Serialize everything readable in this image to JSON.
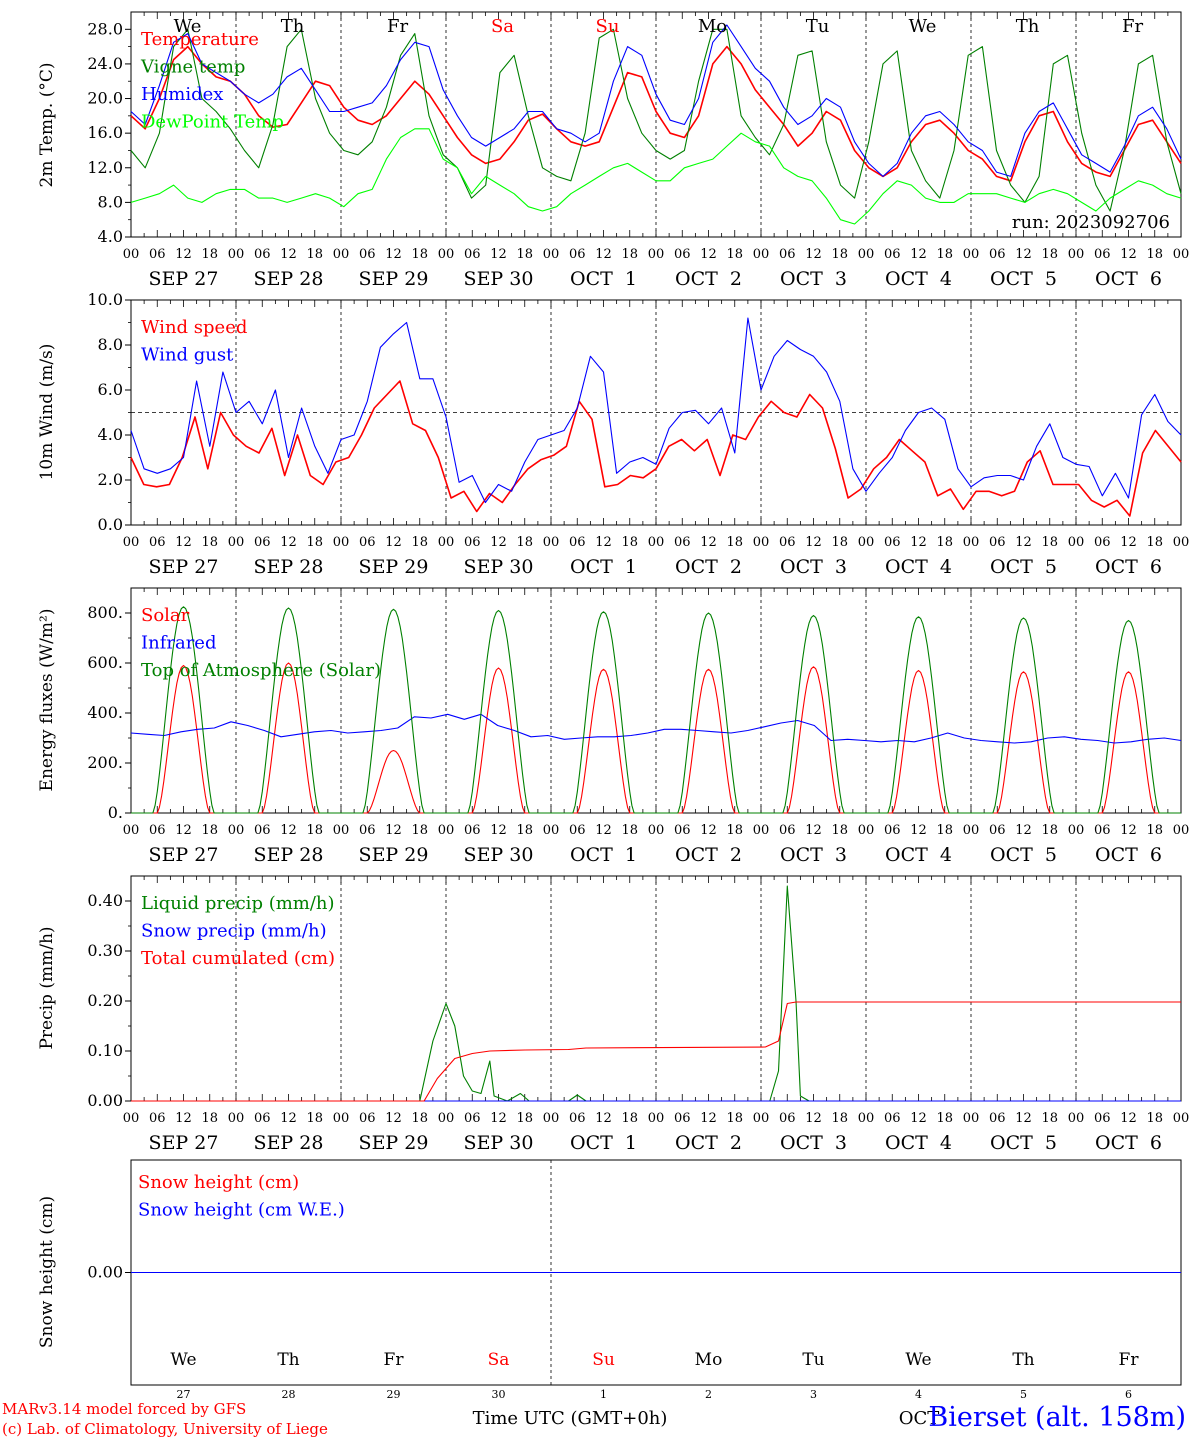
{
  "chart_data": [
    {
      "type": "line",
      "ylabel": "2m Temp. (°C)",
      "ylim": [
        4,
        30
      ],
      "yticks": [
        "4.0",
        "8.0",
        "12.0",
        "16.0",
        "20.0",
        "24.0",
        "28.0"
      ],
      "ytick_values": [
        4,
        8,
        12,
        16,
        20,
        24,
        28
      ],
      "run_label": "run: 2023092706",
      "date_labels": [
        "SEP 27",
        "SEP 28",
        "SEP 29",
        "SEP 30",
        "OCT  1",
        "OCT  2",
        "OCT  3",
        "OCT  4",
        "OCT  5",
        "OCT  6"
      ],
      "day_labels": [
        "We",
        "Th",
        "Fr",
        "Sa",
        "Su",
        "Mo",
        "Tu",
        "We",
        "Th",
        "Fr"
      ],
      "series": [
        {
          "name": "Temperature",
          "color": "#ff0000",
          "values": [
            18,
            16.5,
            20,
            24.5,
            26,
            24,
            22.5,
            22,
            20.5,
            18,
            16.7,
            17,
            19.5,
            22,
            21.5,
            19,
            17.5,
            17,
            18,
            20,
            22,
            20.5,
            18,
            15.5,
            13.5,
            12.5,
            13,
            15,
            17.5,
            18.2,
            16.5,
            15,
            14.5,
            15,
            19,
            23,
            22.5,
            18.5,
            16,
            15.5,
            18,
            24,
            26,
            24,
            21,
            19,
            17,
            14.5,
            16,
            18.5,
            17.5,
            14,
            12,
            11,
            12,
            15,
            17,
            17.5,
            16,
            14,
            13,
            11,
            10.5,
            15,
            18,
            18.5,
            15,
            12.5,
            11.5,
            11,
            14,
            17,
            17.5,
            15,
            12.5
          ]
        },
        {
          "name": "Vigne temp",
          "color": "#008000",
          "values": [
            14,
            12,
            16,
            26,
            28,
            20,
            18.5,
            16.5,
            14,
            12,
            17,
            26,
            28,
            20,
            16,
            14,
            13.5,
            15,
            19,
            25,
            27.5,
            18,
            13.5,
            12,
            8.5,
            10,
            23,
            25,
            18,
            12,
            11,
            10.5,
            16,
            27,
            28,
            20,
            16,
            14,
            13,
            14,
            22,
            28,
            28,
            18,
            15.5,
            13.5,
            17,
            25,
            25.5,
            15,
            10,
            8.5,
            15,
            24,
            25.5,
            14,
            10.5,
            8.5,
            14,
            25,
            26,
            14,
            10,
            8,
            11,
            24,
            25,
            16,
            10,
            7,
            14,
            24,
            25,
            15,
            9
          ]
        },
        {
          "name": "Humidex",
          "color": "#0000ff",
          "values": [
            18.5,
            17,
            21.5,
            26.5,
            27.5,
            24,
            23,
            22,
            20.5,
            19.5,
            20.5,
            22.5,
            23.5,
            21,
            18.5,
            18.5,
            19,
            19.5,
            21.5,
            24.5,
            26.5,
            26,
            21,
            18,
            15.5,
            14.5,
            15.5,
            16.5,
            18.5,
            18.5,
            16.5,
            16,
            15,
            16,
            22,
            26,
            25,
            20.5,
            17.5,
            17,
            20,
            26.5,
            28.5,
            26,
            23.5,
            22,
            19,
            17,
            18,
            20,
            19,
            15,
            12.5,
            11,
            12.5,
            16,
            18,
            18.5,
            17,
            15,
            14,
            11.5,
            11,
            16,
            18.5,
            19.5,
            16.5,
            13.5,
            12.5,
            11.5,
            14.5,
            18,
            19,
            16.5,
            13
          ]
        },
        {
          "name": "DewPoint Temp",
          "color": "#00ff00",
          "values": [
            8,
            8.5,
            9,
            10,
            8.5,
            8,
            9,
            9.5,
            9.5,
            8.5,
            8.5,
            8,
            8.5,
            9,
            8.5,
            7.5,
            9,
            9.5,
            13,
            15.5,
            16.5,
            16.5,
            13,
            12,
            9,
            11,
            10,
            9,
            7.5,
            7,
            7.5,
            9,
            10,
            11,
            12,
            12.5,
            11.5,
            10.5,
            10.5,
            12,
            12.5,
            13,
            14.5,
            16,
            15,
            14.5,
            12,
            11,
            10.5,
            8.5,
            6,
            5.5,
            7,
            9,
            10.5,
            10,
            8.5,
            8,
            8,
            9,
            9,
            9,
            8.5,
            8,
            9,
            9.5,
            9,
            8,
            7,
            8.5,
            9.5,
            10.5,
            10,
            9,
            8.5
          ]
        }
      ]
    },
    {
      "type": "line",
      "ylabel": "10m Wind (m/s)",
      "ylim": [
        0,
        10
      ],
      "yticks": [
        "0.0",
        "2.0",
        "4.0",
        "6.0",
        "8.0",
        "10.0"
      ],
      "ytick_values": [
        0,
        2,
        4,
        6,
        8,
        10
      ],
      "reference_line": 5,
      "date_labels": [
        "SEP 27",
        "SEP 28",
        "SEP 29",
        "SEP 30",
        "OCT  1",
        "OCT  2",
        "OCT  3",
        "OCT  4",
        "OCT  5",
        "OCT  6"
      ],
      "series": [
        {
          "name": "Wind speed",
          "color": "#ff0000",
          "values": [
            3,
            1.8,
            1.7,
            1.8,
            3,
            4.8,
            2.5,
            5,
            4,
            3.5,
            3.2,
            4.3,
            2.2,
            4,
            2.2,
            1.8,
            2.8,
            3,
            4,
            5.2,
            5.8,
            6.4,
            4.5,
            4.2,
            3,
            1.2,
            1.5,
            0.6,
            1.4,
            1,
            1.8,
            2.5,
            2.9,
            3.1,
            3.5,
            5.5,
            4.7,
            1.7,
            1.8,
            2.2,
            2.1,
            2.5,
            3.5,
            3.8,
            3.3,
            3.8,
            2.2,
            4,
            3.8,
            4.8,
            5.5,
            5,
            4.8,
            5.8,
            5.2,
            3.4,
            1.2,
            1.6,
            2.5,
            3,
            3.8,
            3.3,
            2.8,
            1.3,
            1.6,
            0.7,
            1.5,
            1.5,
            1.3,
            1.5,
            2.8,
            3.3,
            1.8,
            1.8,
            1.8,
            1.1,
            0.8,
            1.1,
            0.4,
            3.2,
            4.2,
            3.5,
            2.8
          ]
        },
        {
          "name": "Wind gust",
          "color": "#0000ff",
          "values": [
            4.2,
            2.5,
            2.3,
            2.5,
            3,
            6.4,
            3.5,
            6.8,
            5,
            5.5,
            4.5,
            6,
            3,
            5.2,
            3.5,
            2.3,
            3.8,
            4,
            5.5,
            7.9,
            8.5,
            9,
            6.5,
            6.5,
            4.8,
            1.9,
            2.2,
            1,
            1.8,
            1.5,
            2.8,
            3.8,
            4,
            4.2,
            5.2,
            7.5,
            6.8,
            2.3,
            2.8,
            3,
            2.7,
            4.3,
            5,
            5.1,
            4.5,
            5.2,
            3.2,
            9.2,
            6,
            7.5,
            8.2,
            7.8,
            7.5,
            6.8,
            5.5,
            2.5,
            1.5,
            2.3,
            3,
            4.2,
            5,
            5.2,
            4.7,
            2.5,
            1.7,
            2.1,
            2.2,
            2.2,
            2,
            3.5,
            4.5,
            3,
            2.7,
            2.6,
            1.3,
            2.3,
            1.2,
            4.9,
            5.8,
            4.6,
            4
          ]
        }
      ]
    },
    {
      "type": "line",
      "ylabel": "Energy fluxes (W/m²)",
      "ylim": [
        0,
        900
      ],
      "yticks": [
        "0.",
        "200.",
        "400.",
        "600.",
        "800."
      ],
      "ytick_values": [
        0,
        200,
        400,
        600,
        800
      ],
      "date_labels": [
        "SEP 27",
        "SEP 28",
        "SEP 29",
        "SEP 30",
        "OCT  1",
        "OCT  2",
        "OCT  3",
        "OCT  4",
        "OCT  5",
        "OCT  6"
      ],
      "series": [
        {
          "name": "Solar",
          "color": "#ff0000",
          "day_peaks": [
            590,
            600,
            250,
            580,
            575,
            575,
            585,
            570,
            565,
            565
          ]
        },
        {
          "name": "Infrared",
          "color": "#0000ff",
          "values": [
            320,
            315,
            310,
            325,
            335,
            340,
            365,
            350,
            330,
            305,
            315,
            325,
            330,
            320,
            325,
            330,
            340,
            385,
            380,
            395,
            375,
            395,
            350,
            330,
            305,
            310,
            295,
            300,
            305,
            305,
            310,
            320,
            335,
            335,
            330,
            325,
            320,
            330,
            345,
            360,
            370,
            350,
            290,
            295,
            290,
            285,
            290,
            285,
            300,
            320,
            300,
            290,
            285,
            280,
            285,
            300,
            305,
            295,
            290,
            280,
            285,
            295,
            300,
            290
          ]
        },
        {
          "name": "Top of Atmosphere (Solar)",
          "color": "#008000",
          "day_peaks": [
            825,
            820,
            815,
            810,
            805,
            800,
            790,
            785,
            780,
            770
          ]
        }
      ]
    },
    {
      "type": "line",
      "ylabel": "Precip (mm/h)",
      "ylim": [
        0,
        0.45
      ],
      "yticks": [
        "0.00",
        "0.10",
        "0.20",
        "0.30",
        "0.40"
      ],
      "ytick_values": [
        0,
        0.1,
        0.2,
        0.3,
        0.4
      ],
      "date_labels": [
        "SEP 27",
        "SEP 28",
        "SEP 29",
        "SEP 30",
        "OCT  1",
        "OCT  2",
        "OCT  3",
        "OCT  4",
        "OCT  5",
        "OCT  6"
      ],
      "series": [
        {
          "name": "Liquid precip (mm/h)",
          "color": "#008000",
          "points": [
            [
              0,
              0
            ],
            [
              66,
              0
            ],
            [
              69,
              0.12
            ],
            [
              72,
              0.195
            ],
            [
              74,
              0.15
            ],
            [
              76,
              0.05
            ],
            [
              78,
              0.02
            ],
            [
              80,
              0.015
            ],
            [
              82,
              0.08
            ],
            [
              83,
              0.01
            ],
            [
              86,
              0
            ],
            [
              89,
              0.015
            ],
            [
              91,
              0
            ],
            [
              100,
              0
            ],
            [
              102,
              0.012
            ],
            [
              104,
              0
            ],
            [
              146,
              0
            ],
            [
              148,
              0.06
            ],
            [
              150,
              0.43
            ],
            [
              152,
              0.2
            ],
            [
              153,
              0.01
            ],
            [
              155,
              0
            ],
            [
              240,
              0
            ]
          ]
        },
        {
          "name": "Snow precip (mm/h)",
          "color": "#0000ff",
          "points": [
            [
              0,
              0
            ],
            [
              240,
              0
            ]
          ]
        },
        {
          "name": "Total cumulated (cm)",
          "color": "#ff0000",
          "points": [
            [
              0,
              0
            ],
            [
              67,
              0
            ],
            [
              70,
              0.045
            ],
            [
              74,
              0.085
            ],
            [
              78,
              0.095
            ],
            [
              82,
              0.1
            ],
            [
              90,
              0.102
            ],
            [
              100,
              0.103
            ],
            [
              104,
              0.106
            ],
            [
              145,
              0.108
            ],
            [
              148,
              0.12
            ],
            [
              150,
              0.195
            ],
            [
              152,
              0.198
            ],
            [
              240,
              0.198
            ]
          ]
        }
      ]
    },
    {
      "type": "line",
      "ylabel": "Snow height (cm)",
      "yticks": [
        "0.00"
      ],
      "ytick_values": [
        0
      ],
      "xlabel": "Time UTC (GMT+0h)",
      "bottom_days": [
        "We",
        "Th",
        "Fr",
        "Sa",
        "Su",
        "Mo",
        "Tu",
        "We",
        "Th",
        "Fr"
      ],
      "bottom_dates": [
        "27",
        "28",
        "29",
        "30",
        "1",
        "2",
        "3",
        "4",
        "5",
        "6"
      ],
      "month_label": "OCT",
      "series": [
        {
          "name": "Snow height (cm)",
          "color": "#ff0000",
          "values": [
            0,
            0
          ]
        },
        {
          "name": "Snow height (cm W.E.)",
          "color": "#0000ff",
          "values": [
            0,
            0
          ]
        }
      ]
    }
  ],
  "x_hour_labels": [
    "00",
    "06",
    "12",
    "18"
  ],
  "weekend_color": "#ff0000",
  "footer": {
    "credit_line1": "MARv3.14 model forced by GFS",
    "credit_line2": "(c) Lab. of Climatology, University of Liege",
    "station": "Bierset (alt. 158m)"
  }
}
